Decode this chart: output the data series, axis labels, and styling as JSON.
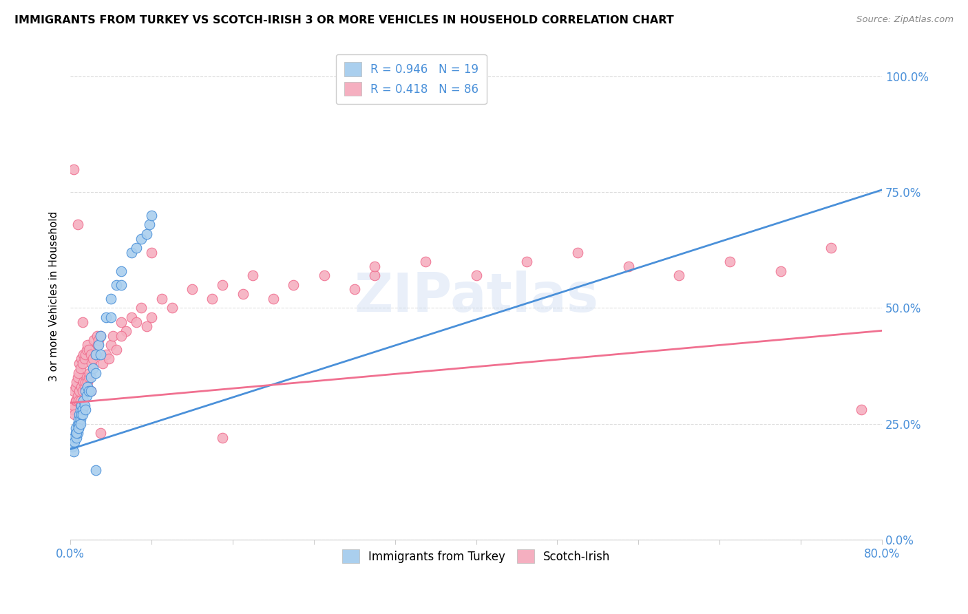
{
  "title": "IMMIGRANTS FROM TURKEY VS SCOTCH-IRISH 3 OR MORE VEHICLES IN HOUSEHOLD CORRELATION CHART",
  "source": "Source: ZipAtlas.com",
  "ylabel": "3 or more Vehicles in Household",
  "yticks": [
    "0.0%",
    "25.0%",
    "50.0%",
    "75.0%",
    "100.0%"
  ],
  "ytick_vals": [
    0.0,
    0.25,
    0.5,
    0.75,
    1.0
  ],
  "xlim": [
    0.0,
    0.8
  ],
  "ylim": [
    0.0,
    1.05
  ],
  "color_blue": "#aacfee",
  "color_pink": "#f5afc0",
  "line_color_blue": "#4a90d9",
  "line_color_pink": "#f07090",
  "text_color_blue": "#4a90d9",
  "turkey_x": [
    0.002,
    0.003,
    0.004,
    0.005,
    0.005,
    0.006,
    0.007,
    0.007,
    0.008,
    0.008,
    0.009,
    0.009,
    0.01,
    0.01,
    0.011,
    0.011,
    0.012,
    0.013,
    0.014,
    0.015,
    0.016,
    0.017,
    0.018,
    0.02,
    0.022,
    0.025,
    0.028,
    0.03,
    0.035,
    0.04,
    0.045,
    0.05,
    0.003,
    0.006,
    0.008,
    0.01,
    0.012,
    0.015,
    0.02,
    0.025,
    0.03,
    0.04,
    0.05,
    0.06,
    0.065,
    0.07,
    0.075,
    0.078,
    0.08,
    0.025
  ],
  "turkey_y": [
    0.2,
    0.22,
    0.21,
    0.23,
    0.24,
    0.22,
    0.23,
    0.25,
    0.24,
    0.26,
    0.25,
    0.27,
    0.26,
    0.28,
    0.27,
    0.29,
    0.28,
    0.3,
    0.29,
    0.32,
    0.31,
    0.33,
    0.32,
    0.35,
    0.37,
    0.4,
    0.42,
    0.44,
    0.48,
    0.52,
    0.55,
    0.58,
    0.19,
    0.23,
    0.24,
    0.25,
    0.27,
    0.28,
    0.32,
    0.36,
    0.4,
    0.48,
    0.55,
    0.62,
    0.63,
    0.65,
    0.66,
    0.68,
    0.7,
    0.15
  ],
  "scotch_x": [
    0.002,
    0.003,
    0.003,
    0.004,
    0.005,
    0.005,
    0.006,
    0.006,
    0.007,
    0.007,
    0.008,
    0.008,
    0.009,
    0.009,
    0.01,
    0.01,
    0.011,
    0.011,
    0.012,
    0.012,
    0.013,
    0.013,
    0.014,
    0.014,
    0.015,
    0.015,
    0.016,
    0.016,
    0.017,
    0.017,
    0.018,
    0.018,
    0.019,
    0.02,
    0.021,
    0.022,
    0.023,
    0.025,
    0.026,
    0.027,
    0.028,
    0.03,
    0.032,
    0.035,
    0.038,
    0.04,
    0.042,
    0.045,
    0.05,
    0.055,
    0.06,
    0.065,
    0.07,
    0.075,
    0.08,
    0.09,
    0.1,
    0.12,
    0.14,
    0.15,
    0.17,
    0.18,
    0.2,
    0.22,
    0.25,
    0.28,
    0.3,
    0.35,
    0.4,
    0.45,
    0.5,
    0.55,
    0.6,
    0.65,
    0.7,
    0.75,
    0.78,
    0.003,
    0.007,
    0.012,
    0.02,
    0.03,
    0.05,
    0.08,
    0.15,
    0.3
  ],
  "scotch_y": [
    0.28,
    0.29,
    0.32,
    0.27,
    0.3,
    0.33,
    0.3,
    0.34,
    0.31,
    0.35,
    0.3,
    0.36,
    0.32,
    0.38,
    0.3,
    0.37,
    0.33,
    0.39,
    0.32,
    0.38,
    0.34,
    0.4,
    0.33,
    0.39,
    0.34,
    0.4,
    0.35,
    0.41,
    0.34,
    0.42,
    0.35,
    0.41,
    0.36,
    0.4,
    0.38,
    0.39,
    0.43,
    0.4,
    0.44,
    0.42,
    0.43,
    0.44,
    0.38,
    0.4,
    0.39,
    0.42,
    0.44,
    0.41,
    0.47,
    0.45,
    0.48,
    0.47,
    0.5,
    0.46,
    0.48,
    0.52,
    0.5,
    0.54,
    0.52,
    0.55,
    0.53,
    0.57,
    0.52,
    0.55,
    0.57,
    0.54,
    0.57,
    0.6,
    0.57,
    0.6,
    0.62,
    0.59,
    0.57,
    0.6,
    0.58,
    0.63,
    0.28,
    0.8,
    0.68,
    0.47,
    0.32,
    0.23,
    0.44,
    0.62,
    0.22,
    0.59
  ],
  "blue_line_x": [
    0.0,
    0.8
  ],
  "blue_line_y_intercept": 0.195,
  "blue_line_slope": 0.7,
  "pink_line_x": [
    0.0,
    0.8
  ],
  "pink_line_y_intercept": 0.295,
  "pink_line_slope": 0.195
}
